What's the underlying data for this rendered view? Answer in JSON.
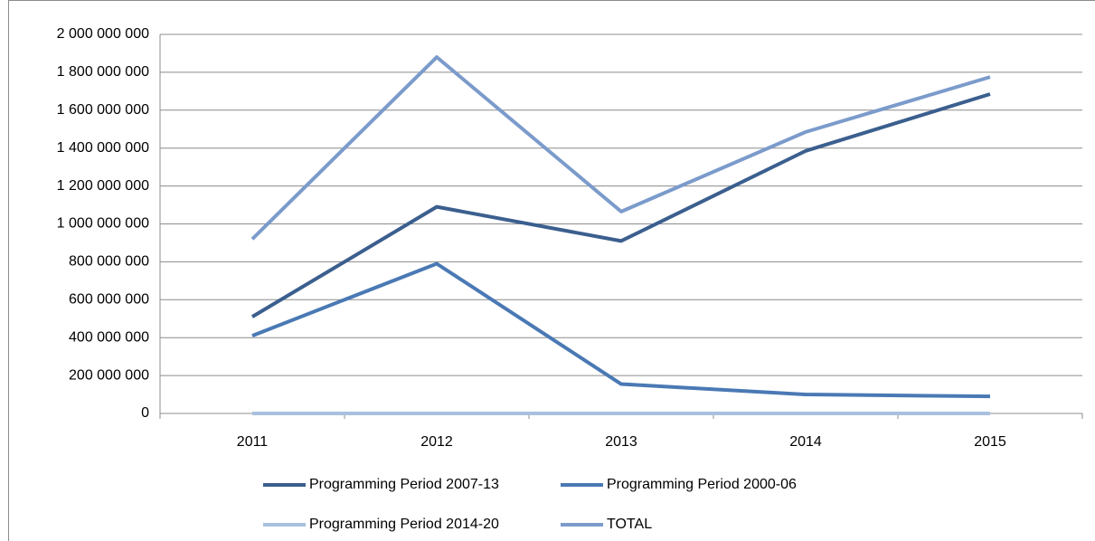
{
  "chart_data": {
    "type": "line",
    "categories": [
      "2011",
      "2012",
      "2013",
      "2014",
      "2015"
    ],
    "series": [
      {
        "name": "Programming Period 2007-13",
        "color": "#3b5f8e",
        "values": [
          510000000,
          1090000000,
          910000000,
          1385000000,
          1685000000
        ]
      },
      {
        "name": "Programming Period 2000-06",
        "color": "#4a79b4",
        "values": [
          410000000,
          790000000,
          155000000,
          100000000,
          90000000
        ]
      },
      {
        "name": "Programming Period 2014-20",
        "color": "#a9c0de",
        "values": [
          0,
          0,
          0,
          0,
          0
        ]
      },
      {
        "name": "TOTAL",
        "color": "#7b9bcb",
        "values": [
          920000000,
          1880000000,
          1065000000,
          1485000000,
          1775000000
        ]
      }
    ],
    "ylim": [
      0,
      2000000000
    ],
    "yticks": [
      0,
      {
        "value": 200000000,
        "label": "200 000 000"
      },
      {
        "value": 400000000,
        "label": "400 000 000"
      },
      {
        "value": 600000000,
        "label": "600 000 000"
      },
      {
        "value": 800000000,
        "label": "800 000 000"
      },
      {
        "value": 1000000000,
        "label": "1 000 000 000"
      },
      {
        "value": 1200000000,
        "label": "1 200 000 000"
      },
      {
        "value": 1400000000,
        "label": "1 400 000 000"
      },
      {
        "value": 1600000000,
        "label": "1 600 000 000"
      },
      {
        "value": 1800000000,
        "label": "1 800 000 000"
      },
      {
        "value": 2000000000,
        "label": "2 000 000 000"
      }
    ],
    "grid": true,
    "legend": "bottom"
  }
}
